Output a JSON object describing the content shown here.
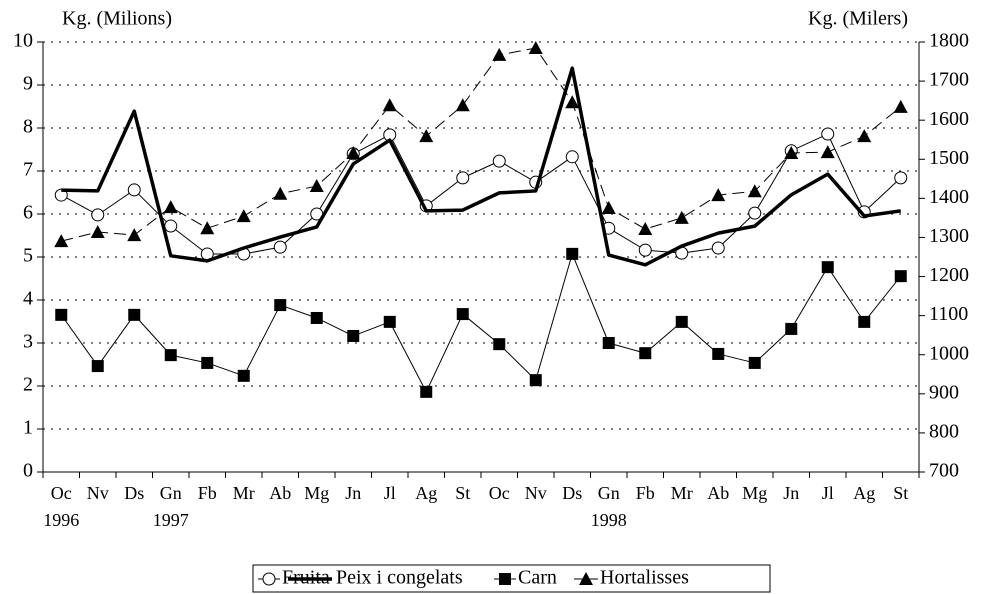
{
  "chart_data": {
    "type": "line",
    "y_label": "Kg. (Milions)",
    "y2_label": "Kg. (Milers)",
    "categories": [
      "Oc",
      "Nv",
      "Ds",
      "Gn",
      "Fb",
      "Mr",
      "Ab",
      "Mg",
      "Jn",
      "Jl",
      "Ag",
      "St",
      "Oc",
      "Nv",
      "Ds",
      "Gn",
      "Fb",
      "Mr",
      "Ab",
      "Mg",
      "Jn",
      "Jl",
      "Ag",
      "St"
    ],
    "years": [
      "1996",
      null,
      null,
      "1997",
      null,
      null,
      null,
      null,
      null,
      null,
      null,
      null,
      null,
      null,
      null,
      "1998",
      null,
      null,
      null,
      null,
      null,
      null,
      null,
      null
    ],
    "ylim": [
      0,
      10
    ],
    "yticks": [
      0,
      1,
      2,
      3,
      4,
      5,
      6,
      7,
      8,
      9,
      10
    ],
    "y2lim": [
      700,
      1800
    ],
    "y2ticks": [
      700,
      800,
      900,
      1000,
      1100,
      1200,
      1300,
      1400,
      1500,
      1600,
      1700,
      1800
    ],
    "grid": true,
    "legend": "bottom",
    "series": [
      {
        "name": "Fruita",
        "color": "#000000",
        "marker": "circle-open",
        "line_width": 1,
        "dash": false,
        "values": [
          6.44,
          5.98,
          6.56,
          5.72,
          5.07,
          5.07,
          5.23,
          6.0,
          7.4,
          7.84,
          6.19,
          6.84,
          7.23,
          6.74,
          7.33,
          5.67,
          5.16,
          5.09,
          5.21,
          6.02,
          7.47,
          7.86,
          6.05,
          6.84
        ]
      },
      {
        "name": "Peix i congelats",
        "color": "#000000",
        "marker": "none",
        "line_width": 3.5,
        "dash": false,
        "axis": "y2",
        "values": [
          1421,
          1419,
          1623,
          1253,
          1240,
          1273,
          1301,
          1327,
          1488,
          1549,
          1368,
          1370,
          1414,
          1419,
          1733,
          1255,
          1230,
          1278,
          1311,
          1329,
          1409,
          1462,
          1355,
          1368
        ]
      },
      {
        "name": "Carn",
        "color": "#000000",
        "marker": "square",
        "line_width": 1,
        "dash": false,
        "axis": "y2",
        "values": [
          1102,
          971,
          1102,
          999,
          979,
          946,
          1127,
          1094,
          1048,
          1084,
          905,
          1104,
          1027,
          935,
          1258,
          1030,
          1004,
          1084,
          1002,
          979,
          1066,
          1224,
          1084,
          1201
        ]
      },
      {
        "name": "Hortalisses",
        "color": "#000000",
        "marker": "triangle",
        "line_width": 1,
        "dash": true,
        "values": [
          5.37,
          5.58,
          5.51,
          6.16,
          5.67,
          5.95,
          6.47,
          6.65,
          7.42,
          8.53,
          7.81,
          8.53,
          9.7,
          9.86,
          8.6,
          6.14,
          5.65,
          5.91,
          6.44,
          6.53,
          7.42,
          7.44,
          7.81,
          8.49
        ]
      }
    ]
  }
}
